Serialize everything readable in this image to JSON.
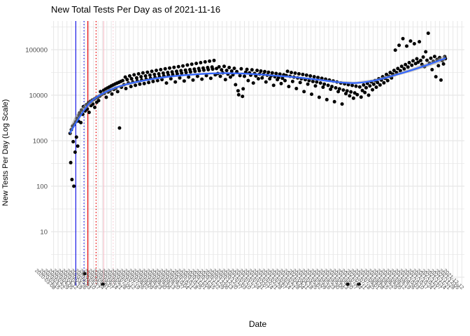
{
  "title": "New Total Tests Per Day as of 2021-11-16",
  "x_axis": {
    "label": "Date"
  },
  "y_axis": {
    "label": "New Tests Per Day (Log Scale)",
    "ticks": [
      "100000",
      "10000",
      "1000",
      "100",
      "10"
    ]
  },
  "colors": {
    "point": "#000000",
    "smooth_line": "#3366FF",
    "ci_band": "#999999",
    "grid_major": "#e2e2e2",
    "grid_minor": "#ededed",
    "grid_vertical": "#e7e7e7",
    "tick_text": "#4d4d4d",
    "event_blue": "#1a1ae6",
    "event_red": "#e60000",
    "event_pink": "#f5bfca"
  },
  "chart_data": {
    "type": "scatter",
    "title": "New Total Tests Per Day as of 2021-11-16",
    "xlabel": "Date",
    "ylabel": "New Tests Per Day (Log Scale)",
    "y_scale": "log10",
    "y_tick_values": [
      100000,
      10000,
      1000,
      100,
      10
    ],
    "x_domain": [
      "2020-03-04",
      "2021-12-16"
    ],
    "data_start": "2020-04-03",
    "data_end": "2021-11-16",
    "grid": true,
    "legend": "none",
    "x_tick_dates": [
      "2020-03-08",
      "2020-03-15",
      "2020-03-22",
      "2020-03-29",
      "2020-04-05",
      "2020-04-12",
      "2020-04-19",
      "2020-04-26",
      "2020-05-03",
      "2020-05-10",
      "2020-05-17",
      "2020-05-24",
      "2020-05-31",
      "2020-06-07",
      "2020-06-14",
      "2020-06-21",
      "2020-06-28",
      "2020-07-05",
      "2020-07-12",
      "2020-07-19",
      "2020-07-26",
      "2020-08-02",
      "2020-08-09",
      "2020-08-16",
      "2020-08-23",
      "2020-08-30",
      "2020-09-06",
      "2020-09-13",
      "2020-09-20",
      "2020-09-27",
      "2020-10-04",
      "2020-10-11",
      "2020-10-18",
      "2020-10-25",
      "2020-11-01",
      "2020-11-08",
      "2020-11-15",
      "2020-11-22",
      "2020-11-29",
      "2020-12-06",
      "2020-12-13",
      "2020-12-20",
      "2020-12-27",
      "2021-01-03",
      "2021-01-10",
      "2021-01-17",
      "2021-01-24",
      "2021-01-31",
      "2021-02-07",
      "2021-02-14",
      "2021-02-21",
      "2021-02-28",
      "2021-03-07",
      "2021-03-14",
      "2021-03-21",
      "2021-03-28",
      "2021-04-04",
      "2021-04-11",
      "2021-04-18",
      "2021-04-25",
      "2021-05-02",
      "2021-05-09",
      "2021-05-16",
      "2021-05-23",
      "2021-05-30",
      "2021-06-06",
      "2021-06-13",
      "2021-06-20",
      "2021-06-27",
      "2021-07-04",
      "2021-07-11",
      "2021-07-18",
      "2021-07-25",
      "2021-08-01",
      "2021-08-08",
      "2021-08-15",
      "2021-08-22",
      "2021-08-29",
      "2021-09-05",
      "2021-09-12",
      "2021-09-19",
      "2021-09-26",
      "2021-10-03",
      "2021-10-10",
      "2021-10-17",
      "2021-10-24",
      "2021-10-31",
      "2021-11-07",
      "2021-11-14",
      "2021-11-21",
      "2021-11-28",
      "2021-12-05",
      "2021-12-12"
    ],
    "event_lines": [
      {
        "date": "2020-04-12",
        "color": "#1a1ae6",
        "style": "solid"
      },
      {
        "date": "2020-04-25",
        "color": "#1a1ae6",
        "style": "dotted"
      },
      {
        "date": "2020-05-01",
        "color": "#e60000",
        "style": "solid"
      },
      {
        "date": "2020-05-14",
        "color": "#e60000",
        "style": "dotted"
      },
      {
        "date": "2020-05-26",
        "color": "#f5bfca",
        "style": "solid"
      },
      {
        "date": "2020-06-10",
        "color": "#f8ccd6",
        "style": "dotted"
      }
    ],
    "smooth": [
      [
        0,
        1500
      ],
      [
        30,
        6500
      ],
      [
        60,
        12500
      ],
      [
        90,
        17500
      ],
      [
        120,
        21500
      ],
      [
        150,
        25000
      ],
      [
        180,
        27500
      ],
      [
        210,
        29500
      ],
      [
        240,
        30500
      ],
      [
        270,
        30000
      ],
      [
        300,
        28500
      ],
      [
        330,
        26500
      ],
      [
        360,
        24500
      ],
      [
        390,
        22000
      ],
      [
        420,
        19500
      ],
      [
        450,
        18500
      ],
      [
        480,
        21000
      ],
      [
        510,
        27000
      ],
      [
        540,
        36000
      ],
      [
        565,
        47000
      ],
      [
        592,
        65000
      ]
    ],
    "ci_halfwidth_log10": [
      [
        0,
        0.09
      ],
      [
        40,
        0.05
      ],
      [
        80,
        0.032
      ],
      [
        120,
        0.026
      ],
      [
        200,
        0.02
      ],
      [
        300,
        0.02
      ],
      [
        400,
        0.024
      ],
      [
        480,
        0.03
      ],
      [
        540,
        0.038
      ],
      [
        570,
        0.05
      ],
      [
        592,
        0.065
      ]
    ],
    "points": [
      [
        0,
        1450
      ],
      [
        1,
        330
      ],
      [
        2,
        1750
      ],
      [
        3,
        140
      ],
      [
        4,
        2100
      ],
      [
        5,
        950
      ],
      [
        6,
        100
      ],
      [
        7,
        2300
      ],
      [
        8,
        560
      ],
      [
        9,
        2600
      ],
      [
        10,
        1200
      ],
      [
        11,
        3100
      ],
      [
        12,
        760
      ],
      [
        13,
        2700
      ],
      [
        14,
        3600
      ],
      [
        15,
        4100
      ],
      [
        17,
        2500
      ],
      [
        18,
        4700
      ],
      [
        20,
        3800
      ],
      [
        21,
        5600
      ],
      [
        23,
        1.2
      ],
      [
        24,
        4500
      ],
      [
        26,
        6200
      ],
      [
        27,
        5000
      ],
      [
        29,
        6800
      ],
      [
        30,
        4200
      ],
      [
        32,
        7300
      ],
      [
        33,
        5900
      ],
      [
        35,
        7800
      ],
      [
        36,
        6400
      ],
      [
        38,
        8200
      ],
      [
        39,
        5400
      ],
      [
        41,
        8700
      ],
      [
        42,
        7000
      ],
      [
        44,
        9100
      ],
      [
        45,
        7600
      ],
      [
        47,
        9600
      ],
      [
        48,
        12000
      ],
      [
        50,
        10400
      ],
      [
        51,
        0.7
      ],
      [
        52,
        0.7
      ],
      [
        53,
        12800
      ],
      [
        54,
        11000
      ],
      [
        56,
        13600
      ],
      [
        57,
        9000
      ],
      [
        59,
        14400
      ],
      [
        60,
        11800
      ],
      [
        62,
        15200
      ],
      [
        63,
        12600
      ],
      [
        65,
        16000
      ],
      [
        66,
        10600
      ],
      [
        68,
        16800
      ],
      [
        69,
        13400
      ],
      [
        71,
        17600
      ],
      [
        72,
        14200
      ],
      [
        74,
        18400
      ],
      [
        75,
        12000
      ],
      [
        77,
        19200
      ],
      [
        78,
        1900
      ],
      [
        80,
        20000
      ],
      [
        81,
        15000
      ],
      [
        83,
        21000
      ],
      [
        85,
        17000
      ],
      [
        87,
        25000
      ],
      [
        88,
        14000
      ],
      [
        90,
        22000
      ],
      [
        92,
        18500
      ],
      [
        94,
        26500
      ],
      [
        96,
        15500
      ],
      [
        97,
        23000
      ],
      [
        99,
        19500
      ],
      [
        101,
        28000
      ],
      [
        103,
        16500
      ],
      [
        105,
        24000
      ],
      [
        106,
        20500
      ],
      [
        108,
        29500
      ],
      [
        110,
        17500
      ],
      [
        112,
        25500
      ],
      [
        113,
        21500
      ],
      [
        115,
        31000
      ],
      [
        117,
        18000
      ],
      [
        119,
        26500
      ],
      [
        120,
        22500
      ],
      [
        122,
        32000
      ],
      [
        124,
        19000
      ],
      [
        126,
        27500
      ],
      [
        127,
        23500
      ],
      [
        129,
        33500
      ],
      [
        131,
        20000
      ],
      [
        133,
        28500
      ],
      [
        134,
        24500
      ],
      [
        136,
        35000
      ],
      [
        138,
        21000
      ],
      [
        140,
        29500
      ],
      [
        141,
        25500
      ],
      [
        143,
        36500
      ],
      [
        145,
        22000
      ],
      [
        147,
        30500
      ],
      [
        148,
        26500
      ],
      [
        150,
        38000
      ],
      [
        152,
        18500
      ],
      [
        154,
        31500
      ],
      [
        155,
        27500
      ],
      [
        157,
        39500
      ],
      [
        159,
        23000
      ],
      [
        161,
        32500
      ],
      [
        162,
        28500
      ],
      [
        164,
        41000
      ],
      [
        166,
        19500
      ],
      [
        168,
        33500
      ],
      [
        169,
        29500
      ],
      [
        171,
        42500
      ],
      [
        173,
        24000
      ],
      [
        175,
        34500
      ],
      [
        176,
        30500
      ],
      [
        178,
        44000
      ],
      [
        180,
        20500
      ],
      [
        182,
        35500
      ],
      [
        183,
        31500
      ],
      [
        185,
        46000
      ],
      [
        187,
        25000
      ],
      [
        189,
        36500
      ],
      [
        190,
        32500
      ],
      [
        192,
        48000
      ],
      [
        194,
        21500
      ],
      [
        196,
        37500
      ],
      [
        197,
        33500
      ],
      [
        199,
        50000
      ],
      [
        201,
        26000
      ],
      [
        203,
        38500
      ],
      [
        204,
        34500
      ],
      [
        206,
        52000
      ],
      [
        208,
        22500
      ],
      [
        210,
        39500
      ],
      [
        211,
        35500
      ],
      [
        213,
        54000
      ],
      [
        215,
        27000
      ],
      [
        217,
        40500
      ],
      [
        218,
        36500
      ],
      [
        220,
        56000
      ],
      [
        222,
        23500
      ],
      [
        224,
        41500
      ],
      [
        225,
        37500
      ],
      [
        227,
        58000
      ],
      [
        229,
        28000
      ],
      [
        231,
        38500
      ],
      [
        233,
        30000
      ],
      [
        235,
        42000
      ],
      [
        237,
        26000
      ],
      [
        239,
        36000
      ],
      [
        241,
        31000
      ],
      [
        243,
        43000
      ],
      [
        245,
        22000
      ],
      [
        247,
        35000
      ],
      [
        249,
        29000
      ],
      [
        251,
        40500
      ],
      [
        253,
        25000
      ],
      [
        255,
        34000
      ],
      [
        257,
        28000
      ],
      [
        259,
        39000
      ],
      [
        261,
        17000
      ],
      [
        263,
        33000
      ],
      [
        265,
        12500
      ],
      [
        266,
        10200
      ],
      [
        268,
        27000
      ],
      [
        270,
        38000
      ],
      [
        272,
        9400
      ],
      [
        273,
        13800
      ],
      [
        275,
        26000
      ],
      [
        277,
        32000
      ],
      [
        279,
        37000
      ],
      [
        281,
        21000
      ],
      [
        283,
        31000
      ],
      [
        285,
        27500
      ],
      [
        287,
        36000
      ],
      [
        289,
        18500
      ],
      [
        291,
        30000
      ],
      [
        293,
        26500
      ],
      [
        295,
        35000
      ],
      [
        297,
        23000
      ],
      [
        299,
        29000
      ],
      [
        301,
        34000
      ],
      [
        303,
        24000
      ],
      [
        305,
        28500
      ],
      [
        307,
        33000
      ],
      [
        309,
        19500
      ],
      [
        311,
        27500
      ],
      [
        313,
        32000
      ],
      [
        315,
        23000
      ],
      [
        317,
        26500
      ],
      [
        319,
        31000
      ],
      [
        321,
        16500
      ],
      [
        323,
        25500
      ],
      [
        325,
        30000
      ],
      [
        327,
        22000
      ],
      [
        329,
        24500
      ],
      [
        331,
        29000
      ],
      [
        333,
        18000
      ],
      [
        335,
        23500
      ],
      [
        337,
        28000
      ],
      [
        339,
        21000
      ],
      [
        341,
        27000
      ],
      [
        343,
        33500
      ],
      [
        345,
        15500
      ],
      [
        347,
        26000
      ],
      [
        349,
        31500
      ],
      [
        351,
        20000
      ],
      [
        353,
        25000
      ],
      [
        355,
        30500
      ],
      [
        357,
        14000
      ],
      [
        359,
        24000
      ],
      [
        361,
        29500
      ],
      [
        363,
        19000
      ],
      [
        365,
        23000
      ],
      [
        367,
        28500
      ],
      [
        369,
        12000
      ],
      [
        371,
        22000
      ],
      [
        373,
        27500
      ],
      [
        375,
        17500
      ],
      [
        377,
        21000
      ],
      [
        379,
        26500
      ],
      [
        381,
        10500
      ],
      [
        383,
        20000
      ],
      [
        385,
        25500
      ],
      [
        387,
        16000
      ],
      [
        389,
        19500
      ],
      [
        391,
        24500
      ],
      [
        393,
        9000
      ],
      [
        395,
        18500
      ],
      [
        397,
        23500
      ],
      [
        399,
        15000
      ],
      [
        401,
        17500
      ],
      [
        403,
        22500
      ],
      [
        405,
        8000
      ],
      [
        407,
        16500
      ],
      [
        409,
        21500
      ],
      [
        411,
        13500
      ],
      [
        413,
        15500
      ],
      [
        415,
        20500
      ],
      [
        417,
        7200
      ],
      [
        419,
        14500
      ],
      [
        421,
        19500
      ],
      [
        423,
        12000
      ],
      [
        425,
        13800
      ],
      [
        427,
        18500
      ],
      [
        429,
        6400
      ],
      [
        431,
        13000
      ],
      [
        433,
        17800
      ],
      [
        435,
        10800
      ],
      [
        437,
        12400
      ],
      [
        438,
        0.7
      ],
      [
        439,
        17000
      ],
      [
        441,
        9700
      ],
      [
        443,
        11800
      ],
      [
        445,
        16400
      ],
      [
        447,
        8600
      ],
      [
        449,
        11200
      ],
      [
        451,
        15800
      ],
      [
        453,
        10300
      ],
      [
        455,
        0.7
      ],
      [
        456,
        0.7
      ],
      [
        457,
        15200
      ],
      [
        459,
        9100
      ],
      [
        461,
        12700
      ],
      [
        463,
        16800
      ],
      [
        465,
        11500
      ],
      [
        467,
        14600
      ],
      [
        469,
        18200
      ],
      [
        471,
        10000
      ],
      [
        473,
        16000
      ],
      [
        475,
        19600
      ],
      [
        477,
        13200
      ],
      [
        479,
        17400
      ],
      [
        481,
        21000
      ],
      [
        483,
        15000
      ],
      [
        485,
        19000
      ],
      [
        487,
        23000
      ],
      [
        489,
        16800
      ],
      [
        491,
        21500
      ],
      [
        493,
        25500
      ],
      [
        495,
        18700
      ],
      [
        497,
        23500
      ],
      [
        499,
        28500
      ],
      [
        501,
        21000
      ],
      [
        503,
        26000
      ],
      [
        505,
        31500
      ],
      [
        507,
        24000
      ],
      [
        509,
        29000
      ],
      [
        511,
        35000
      ],
      [
        513,
        98000
      ],
      [
        515,
        31500
      ],
      [
        517,
        38500
      ],
      [
        519,
        125000
      ],
      [
        521,
        34500
      ],
      [
        523,
        43000
      ],
      [
        525,
        175000
      ],
      [
        527,
        38000
      ],
      [
        529,
        47000
      ],
      [
        531,
        120000
      ],
      [
        533,
        41500
      ],
      [
        535,
        52000
      ],
      [
        537,
        155000
      ],
      [
        539,
        45500
      ],
      [
        541,
        57000
      ],
      [
        543,
        135000
      ],
      [
        545,
        49500
      ],
      [
        547,
        63000
      ],
      [
        549,
        53000
      ],
      [
        551,
        150000
      ],
      [
        553,
        58000
      ],
      [
        555,
        47500
      ],
      [
        557,
        69000
      ],
      [
        559,
        42500
      ],
      [
        561,
        90000
      ],
      [
        563,
        58500
      ],
      [
        565,
        230000
      ],
      [
        567,
        50500
      ],
      [
        569,
        65000
      ],
      [
        571,
        36500
      ],
      [
        573,
        55500
      ],
      [
        575,
        71000
      ],
      [
        577,
        25500
      ],
      [
        579,
        61000
      ],
      [
        581,
        44500
      ],
      [
        583,
        67000
      ],
      [
        585,
        21500
      ],
      [
        587,
        57500
      ],
      [
        589,
        48500
      ],
      [
        591,
        70500
      ],
      [
        592,
        63500
      ]
    ]
  }
}
